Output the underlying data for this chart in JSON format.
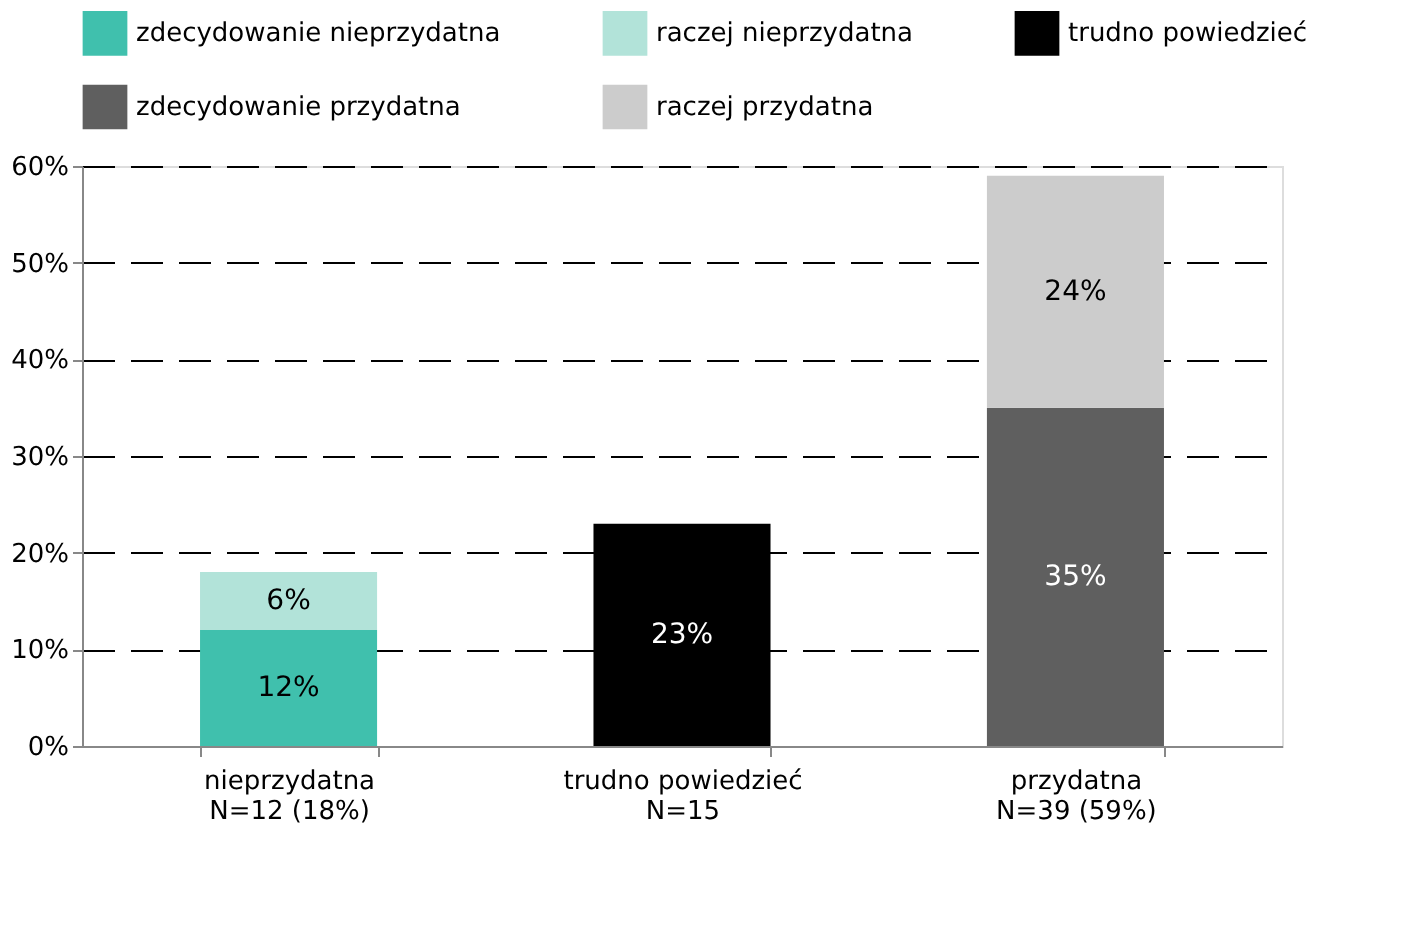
{
  "chart_data": {
    "type": "bar",
    "stacked": true,
    "categories": [
      "nieprzydatna\nN=12 (18%)",
      "trudno powiedzieć\nN=15",
      "przydatna\nN=39 (59%)"
    ],
    "series": [
      {
        "name": "zdecydowanie nieprzydatna",
        "color": "#40c0ad",
        "values": [
          12,
          null,
          null
        ],
        "value_labels": [
          "12%",
          null,
          null
        ]
      },
      {
        "name": "raczej nieprzydatna",
        "color": "#b2e3d9",
        "values": [
          6,
          null,
          null
        ],
        "value_labels": [
          "6%",
          null,
          null
        ]
      },
      {
        "name": "trudno powiedzieć",
        "color": "#000000",
        "values": [
          null,
          23,
          null
        ],
        "value_labels": [
          null,
          "23%",
          null
        ]
      },
      {
        "name": "zdecydowanie przydatna",
        "color": "#5f5f5f",
        "values": [
          null,
          null,
          35
        ],
        "value_labels": [
          null,
          null,
          "35%"
        ]
      },
      {
        "name": "raczej przydatna",
        "color": "#cccccc",
        "values": [
          null,
          null,
          24
        ],
        "value_labels": [
          null,
          null,
          "24%"
        ]
      }
    ],
    "ylim": [
      0,
      60
    ],
    "yticks": [
      {
        "value": 0,
        "label": "0%"
      },
      {
        "value": 10,
        "label": "10%"
      },
      {
        "value": 20,
        "label": "20%"
      },
      {
        "value": 30,
        "label": "30%"
      },
      {
        "value": 40,
        "label": "40%"
      },
      {
        "value": 50,
        "label": "50%"
      },
      {
        "value": 60,
        "label": "60%"
      }
    ],
    "grid": "y",
    "legend": "top left"
  }
}
